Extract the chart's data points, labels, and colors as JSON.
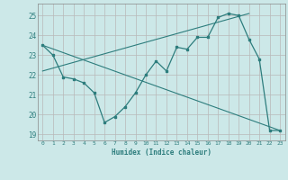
{
  "xlabel": "Humidex (Indice chaleur)",
  "bg_color": "#cce8e8",
  "line_color": "#2d7d7d",
  "xlim": [
    -0.5,
    23.5
  ],
  "ylim": [
    18.7,
    25.6
  ],
  "xticks": [
    0,
    1,
    2,
    3,
    4,
    5,
    6,
    7,
    8,
    9,
    10,
    11,
    12,
    13,
    14,
    15,
    16,
    17,
    18,
    19,
    20,
    21,
    22,
    23
  ],
  "yticks": [
    19,
    20,
    21,
    22,
    23,
    24,
    25
  ],
  "curve_x": [
    0,
    1,
    2,
    3,
    4,
    5,
    6,
    7,
    8,
    9,
    10,
    11,
    12,
    13,
    14,
    15,
    16,
    17,
    18,
    19,
    20,
    21,
    22,
    23
  ],
  "curve_y": [
    23.5,
    23.0,
    21.9,
    21.8,
    21.6,
    21.1,
    19.6,
    19.9,
    20.4,
    21.1,
    22.0,
    22.7,
    22.2,
    23.4,
    23.3,
    23.9,
    23.9,
    24.9,
    25.1,
    25.0,
    23.8,
    22.8,
    19.2,
    19.2
  ],
  "trend1_x": [
    0,
    23
  ],
  "trend1_y": [
    23.5,
    19.2
  ],
  "trend2_x": [
    0,
    20
  ],
  "trend2_y": [
    22.2,
    25.1
  ]
}
